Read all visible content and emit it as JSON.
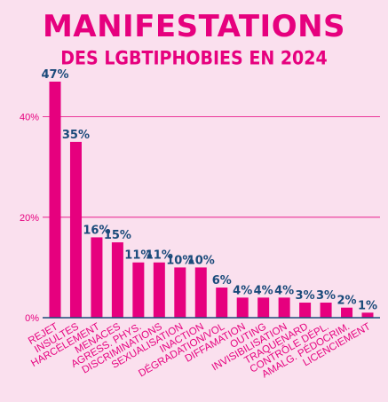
{
  "header": {
    "title": "MANIFESTATIONS",
    "subtitle": "DES LGBTIPHOBIES EN 2024"
  },
  "colors": {
    "background": "#fae0ee",
    "bar": "#e6007e",
    "value_label": "#1a4a7a",
    "axis": "#1a4a7a",
    "grid": "#e6007e"
  },
  "chart_data": {
    "type": "bar",
    "title": "MANIFESTATIONS",
    "subtitle": "DES LGBTIPHOBIES EN 2024",
    "categories": [
      "REJET",
      "INSULTES",
      "HARCÈLEMENT",
      "MENACES",
      "AGRESS. PHYS.",
      "DISCRIMINATIONS",
      "SEXUALISATION",
      "INACTION",
      "DÉGRADATION/VOL",
      "DIFFAMATION",
      "OUTING",
      "INVISIBILISATION",
      "TRAQUENARD",
      "CONTRÔLE DÉPL.",
      "AMALG. PÉDOCRIM.",
      "LICENCIEMENT"
    ],
    "values": [
      47,
      35,
      16,
      15,
      11,
      11,
      10,
      10,
      6,
      4,
      4,
      4,
      3,
      3,
      2,
      1
    ],
    "value_labels": [
      "47%",
      "35%",
      "16%",
      "15%",
      "11%",
      "11%",
      "10%",
      "10%",
      "6%",
      "4%",
      "4%",
      "4%",
      "3%",
      "3%",
      "2%",
      "1%"
    ],
    "y_ticks": [
      0,
      20,
      40
    ],
    "y_tick_labels": [
      "0%",
      "20%",
      "40%"
    ],
    "ylim": [
      0,
      50
    ],
    "xlabel": "",
    "ylabel": "",
    "grid": true
  }
}
